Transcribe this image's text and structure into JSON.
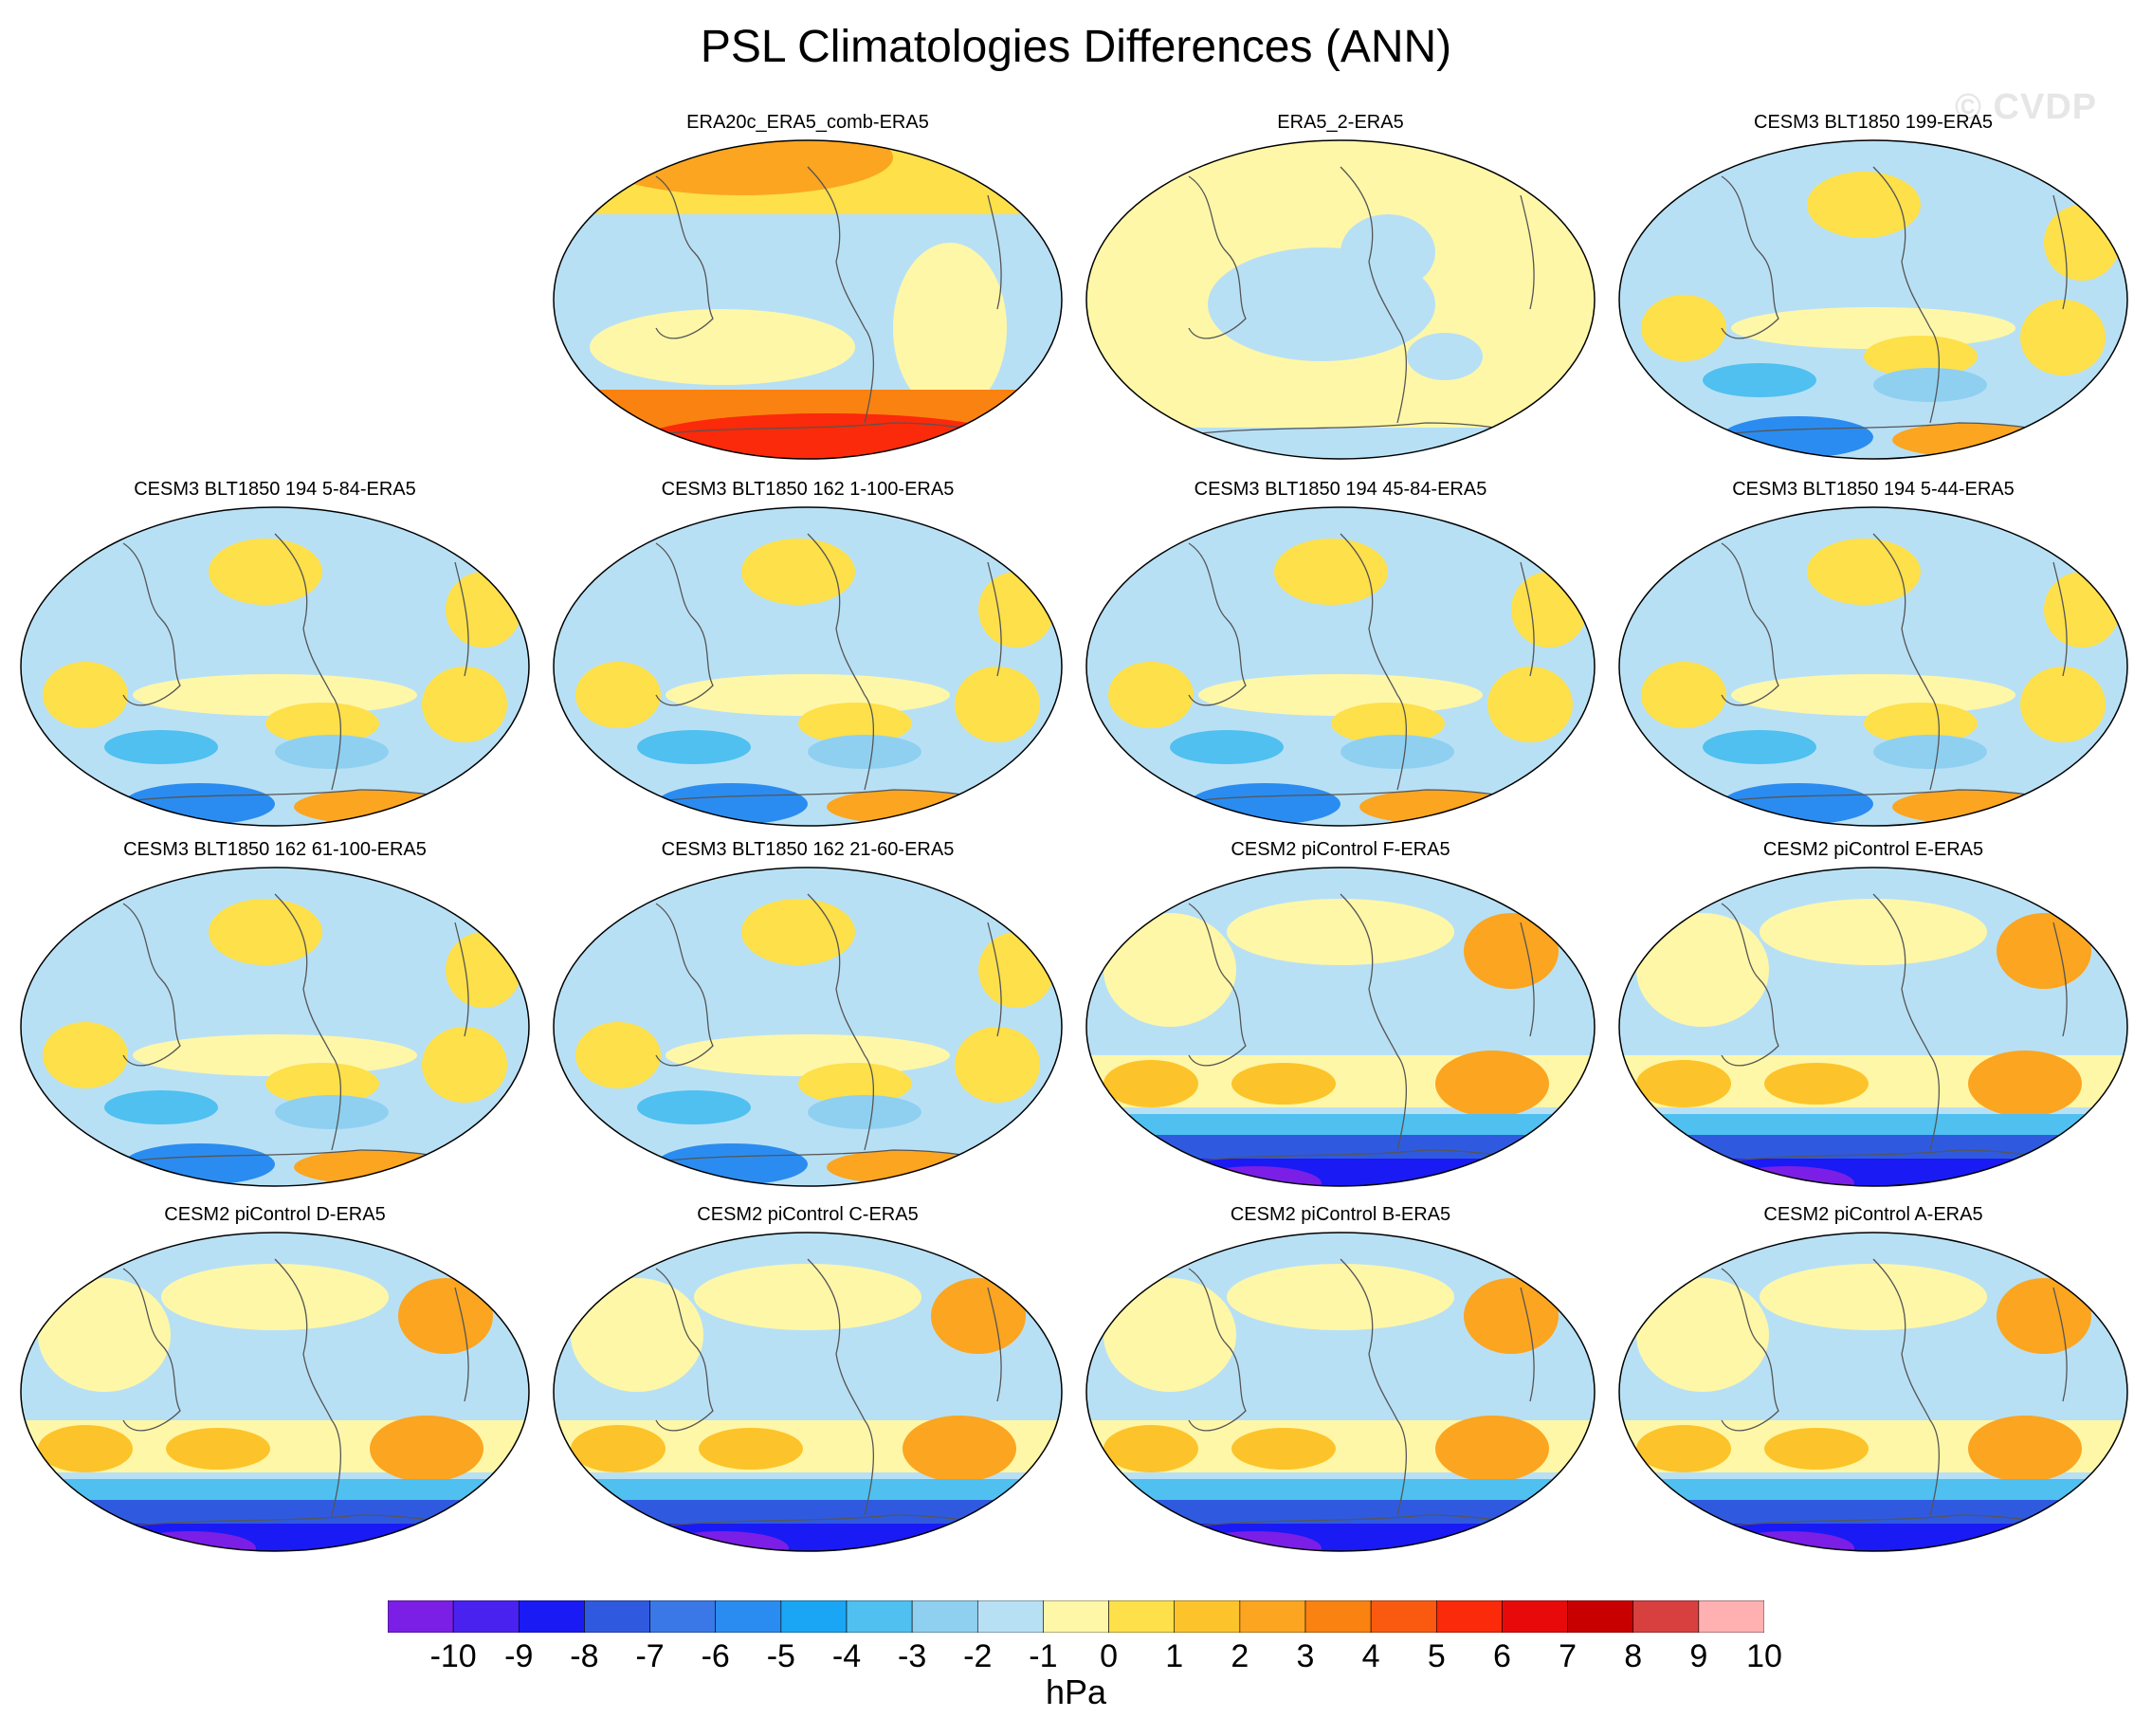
{
  "title": "PSL Climatologies Differences (ANN)",
  "watermark": "© CVDP",
  "colorbar": {
    "units": "hPa",
    "ticks": [
      "-10",
      "-9",
      "-8",
      "-7",
      "-6",
      "-5",
      "-4",
      "-3",
      "-2",
      "-1",
      "0",
      "1",
      "2",
      "3",
      "4",
      "5",
      "6",
      "7",
      "8",
      "9",
      "10"
    ],
    "colors": [
      "#7b1fe6",
      "#4a22f0",
      "#1a1af5",
      "#2f5ae0",
      "#3a78e8",
      "#2a8cf0",
      "#1aa6f5",
      "#4fc0f0",
      "#8fd0f0",
      "#b8e0f5",
      "#fff7a8",
      "#fde04a",
      "#fcc42a",
      "#fba520",
      "#fa8210",
      "#fa5a10",
      "#fa2a0a",
      "#e80a0a",
      "#c80000",
      "#d84040",
      "#ffb0b0"
    ]
  },
  "panels": [
    {
      "title": "ERA20c_ERA5_comb-ERA5",
      "style": "era20c"
    },
    {
      "title": "ERA5_2-ERA5",
      "style": "era5"
    },
    {
      "title": "CESM3 BLT1850 199-ERA5",
      "style": "cesm3"
    },
    {
      "title": "CESM3 BLT1850 194 5-84-ERA5",
      "style": "cesm3"
    },
    {
      "title": "CESM3 BLT1850 162 1-100-ERA5",
      "style": "cesm3"
    },
    {
      "title": "CESM3 BLT1850 194 45-84-ERA5",
      "style": "cesm3"
    },
    {
      "title": "CESM3 BLT1850 194 5-44-ERA5",
      "style": "cesm3"
    },
    {
      "title": "CESM3 BLT1850 162 61-100-ERA5",
      "style": "cesm3"
    },
    {
      "title": "CESM3 BLT1850 162 21-60-ERA5",
      "style": "cesm3"
    },
    {
      "title": "CESM2 piControl F-ERA5",
      "style": "cesm2"
    },
    {
      "title": "CESM2 piControl E-ERA5",
      "style": "cesm2"
    },
    {
      "title": "CESM2 piControl D-ERA5",
      "style": "cesm2"
    },
    {
      "title": "CESM2 piControl C-ERA5",
      "style": "cesm2"
    },
    {
      "title": "CESM2 piControl B-ERA5",
      "style": "cesm2"
    },
    {
      "title": "CESM2 piControl A-ERA5",
      "style": "cesm2"
    }
  ]
}
